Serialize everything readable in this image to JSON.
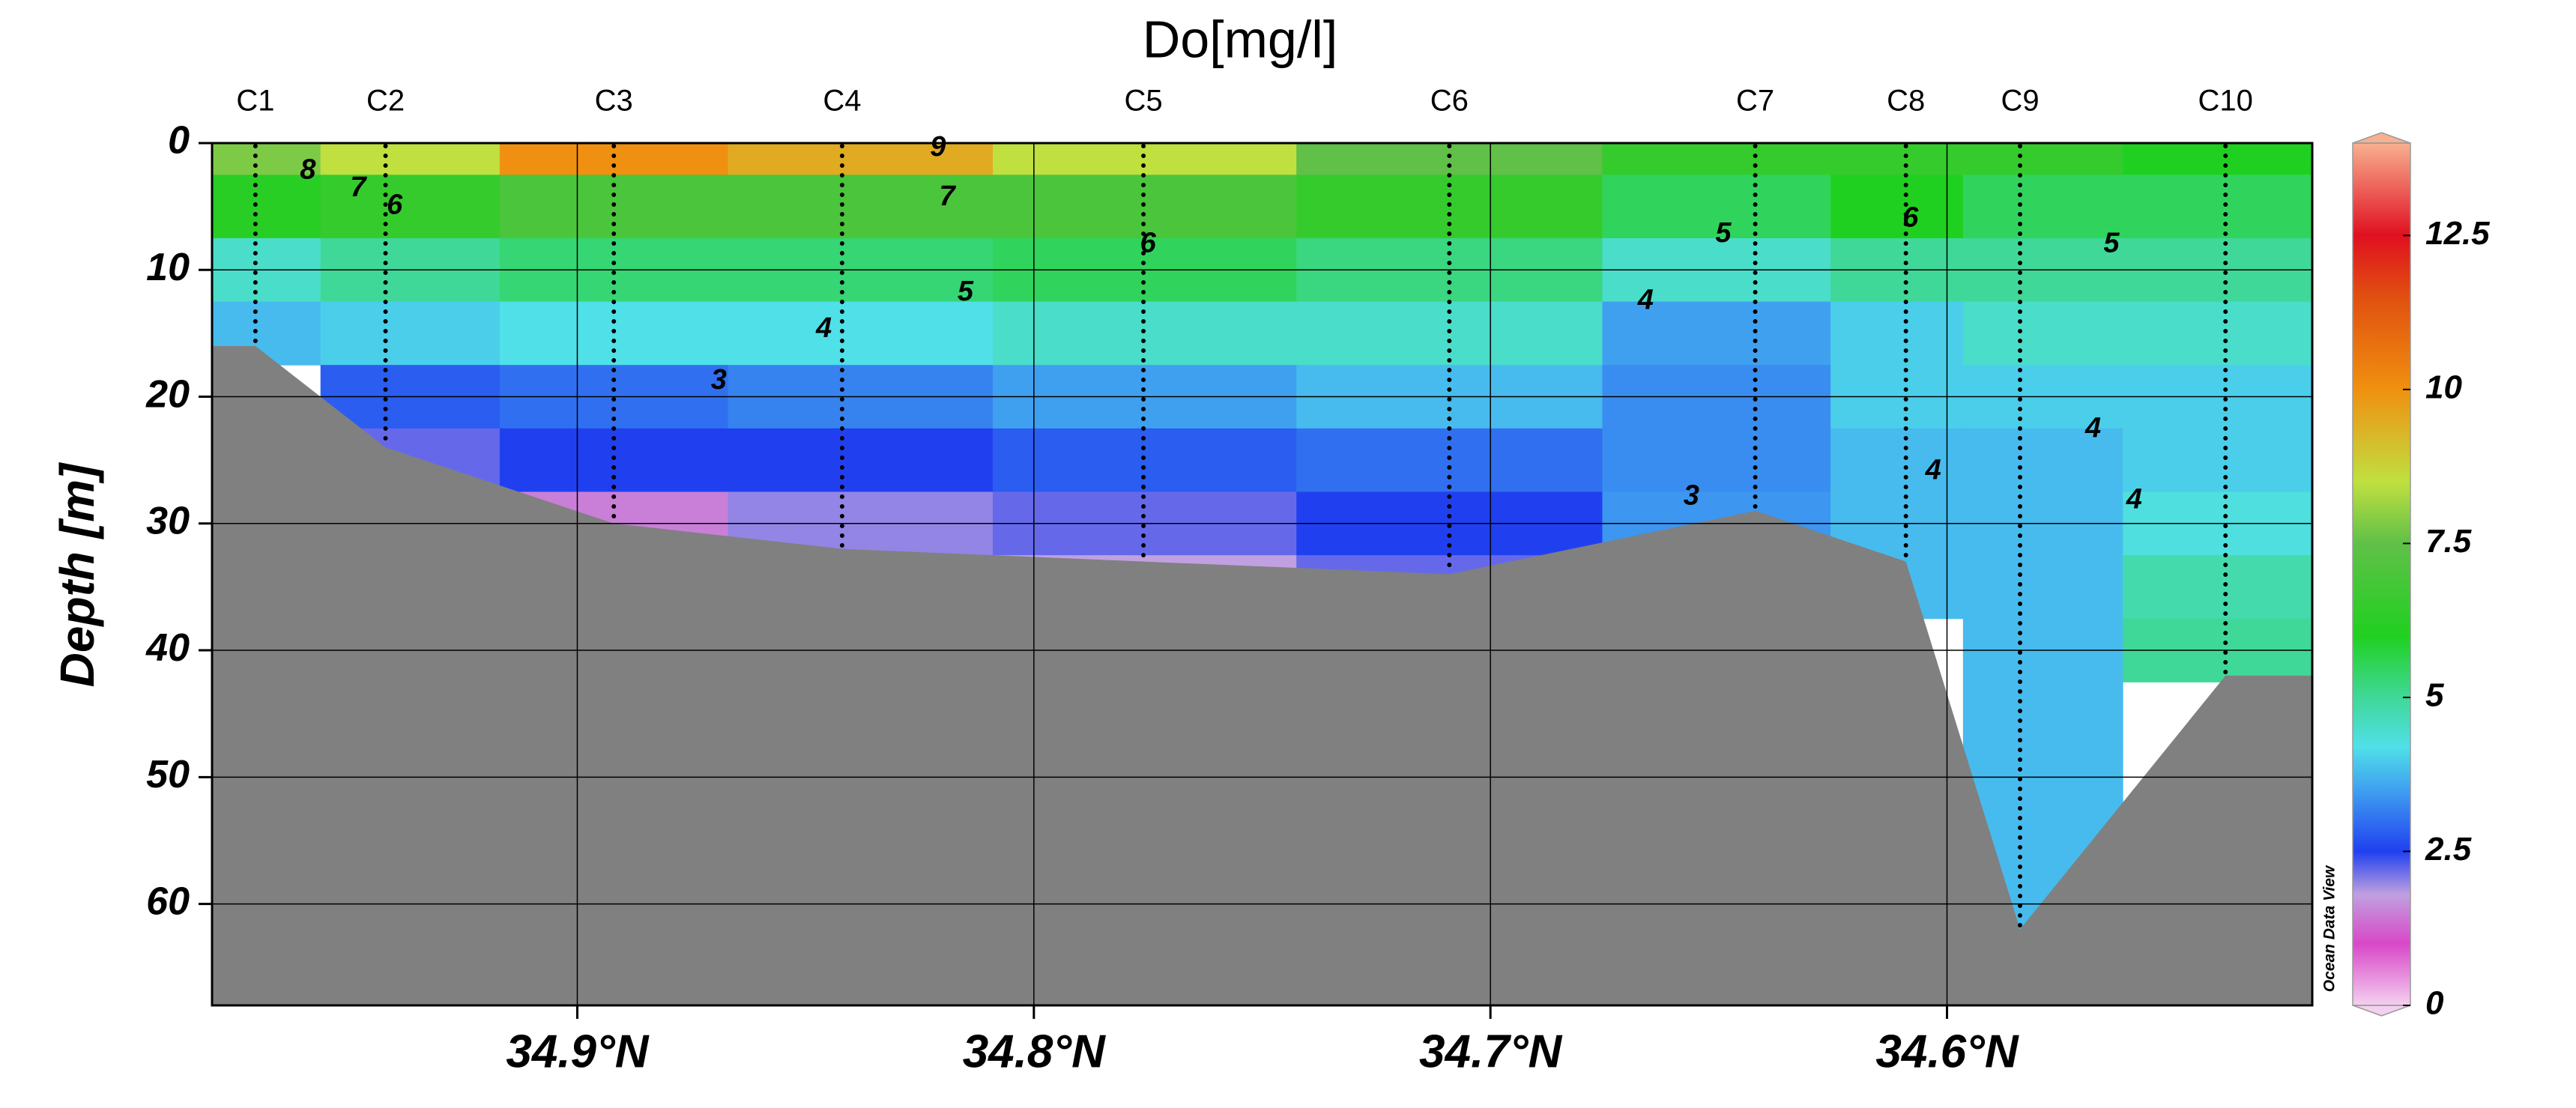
{
  "chart_data": {
    "type": "section",
    "title": "Do[mg/l]",
    "y_label": "Depth [m]",
    "watermark": "Ocean Data View",
    "xlim": [
      34.98,
      34.52
    ],
    "xticks": [
      {
        "value": 34.9,
        "label": "34.9°N"
      },
      {
        "value": 34.8,
        "label": "34.8°N"
      },
      {
        "value": 34.7,
        "label": "34.7°N"
      },
      {
        "value": 34.6,
        "label": "34.6°N"
      }
    ],
    "ylim": [
      0,
      68
    ],
    "yticks": [
      0,
      10,
      20,
      30,
      40,
      50,
      60
    ],
    "grid": true,
    "seafloor_color": "#808080",
    "depths": [
      0,
      5,
      10,
      15,
      20,
      25,
      30,
      35,
      40,
      45,
      50,
      55,
      60
    ],
    "stations": [
      {
        "name": "C1",
        "lat": 34.9705,
        "bottom_depth": 16,
        "values": [
          7.8,
          6.2,
          4.5,
          3.8,
          null,
          null,
          null,
          null,
          null,
          null,
          null,
          null,
          null
        ]
      },
      {
        "name": "C2",
        "lat": 34.942,
        "bottom_depth": 24,
        "values": [
          8.5,
          6.5,
          5,
          4,
          2.8,
          2.2,
          null,
          null,
          null,
          null,
          null,
          null,
          null
        ]
      },
      {
        "name": "C3",
        "lat": 34.892,
        "bottom_depth": 30,
        "values": [
          10,
          7,
          5.3,
          4.2,
          3,
          2.5,
          1.5,
          null,
          null,
          null,
          null,
          null,
          null
        ]
      },
      {
        "name": "C4",
        "lat": 34.842,
        "bottom_depth": 32,
        "values": [
          9.5,
          7,
          5.3,
          4.2,
          3.2,
          2.5,
          2,
          null,
          null,
          null,
          null,
          null,
          null
        ]
      },
      {
        "name": "C5",
        "lat": 34.776,
        "bottom_depth": 33,
        "values": [
          8.5,
          7,
          5.5,
          4.5,
          3.5,
          2.8,
          2.2,
          1.8,
          null,
          null,
          null,
          null,
          null
        ]
      },
      {
        "name": "C6",
        "lat": 34.709,
        "bottom_depth": 34,
        "values": [
          7.5,
          6.5,
          5.2,
          4.5,
          3.8,
          3,
          2.5,
          2.2,
          null,
          null,
          null,
          null,
          null
        ]
      },
      {
        "name": "C7",
        "lat": 34.642,
        "bottom_depth": 29,
        "values": [
          6.5,
          5.5,
          4.5,
          3.5,
          3.3,
          3.3,
          3.4,
          null,
          null,
          null,
          null,
          null,
          null
        ]
      },
      {
        "name": "C8",
        "lat": 34.609,
        "bottom_depth": 33,
        "values": [
          6.5,
          6,
          5,
          4,
          4,
          3.8,
          3.8,
          3.8,
          null,
          null,
          null,
          null,
          null
        ]
      },
      {
        "name": "C9",
        "lat": 34.584,
        "bottom_depth": 62,
        "values": [
          6.5,
          5.5,
          5,
          4.5,
          4,
          3.8,
          3.8,
          3.8,
          3.8,
          3.8,
          3.8,
          3.8,
          3.8
        ]
      },
      {
        "name": "C10",
        "lat": 34.539,
        "bottom_depth": 42,
        "values": [
          6,
          5.5,
          5,
          4.5,
          4,
          4,
          4.3,
          4.8,
          5,
          null,
          null,
          null,
          null
        ]
      }
    ],
    "contour_labels": [
      {
        "value": 9,
        "lat": 34.821,
        "depth": 0.4
      },
      {
        "value": 8,
        "lat": 34.959,
        "depth": 2.2
      },
      {
        "value": 7,
        "lat": 34.948,
        "depth": 3.6
      },
      {
        "value": 6,
        "lat": 34.94,
        "depth": 5
      },
      {
        "value": 7,
        "lat": 34.819,
        "depth": 4.3
      },
      {
        "value": 6,
        "lat": 34.775,
        "depth": 8
      },
      {
        "value": 5,
        "lat": 34.815,
        "depth": 11.8
      },
      {
        "value": 4,
        "lat": 34.846,
        "depth": 14.7
      },
      {
        "value": 3,
        "lat": 34.869,
        "depth": 18.8
      },
      {
        "value": 5,
        "lat": 34.649,
        "depth": 7.2
      },
      {
        "value": 4,
        "lat": 34.666,
        "depth": 12.5
      },
      {
        "value": 6,
        "lat": 34.608,
        "depth": 6
      },
      {
        "value": 5,
        "lat": 34.564,
        "depth": 8
      },
      {
        "value": 3,
        "lat": 34.656,
        "depth": 27.9
      },
      {
        "value": 4,
        "lat": 34.603,
        "depth": 25.9
      },
      {
        "value": 4,
        "lat": 34.568,
        "depth": 22.6
      },
      {
        "value": 4,
        "lat": 34.559,
        "depth": 28.2
      }
    ],
    "colorlim": [
      0,
      14
    ],
    "colorticks": [
      0,
      2.5,
      5,
      7.5,
      10,
      12.5
    ],
    "colormap": [
      {
        "value": 0,
        "color": "#f4d0f0"
      },
      {
        "value": 1,
        "color": "#d848c8"
      },
      {
        "value": 1.8,
        "color": "#c0a0e0"
      },
      {
        "value": 2.5,
        "color": "#2040f0"
      },
      {
        "value": 3.5,
        "color": "#40a0f0"
      },
      {
        "value": 4.2,
        "color": "#50e0e8"
      },
      {
        "value": 5,
        "color": "#40d898"
      },
      {
        "value": 6,
        "color": "#20d020"
      },
      {
        "value": 7.5,
        "color": "#60c048"
      },
      {
        "value": 8.5,
        "color": "#c0e040"
      },
      {
        "value": 10,
        "color": "#f09010"
      },
      {
        "value": 11.5,
        "color": "#e05010"
      },
      {
        "value": 12.5,
        "color": "#e01020"
      },
      {
        "value": 14,
        "color": "#f8b090"
      }
    ]
  }
}
